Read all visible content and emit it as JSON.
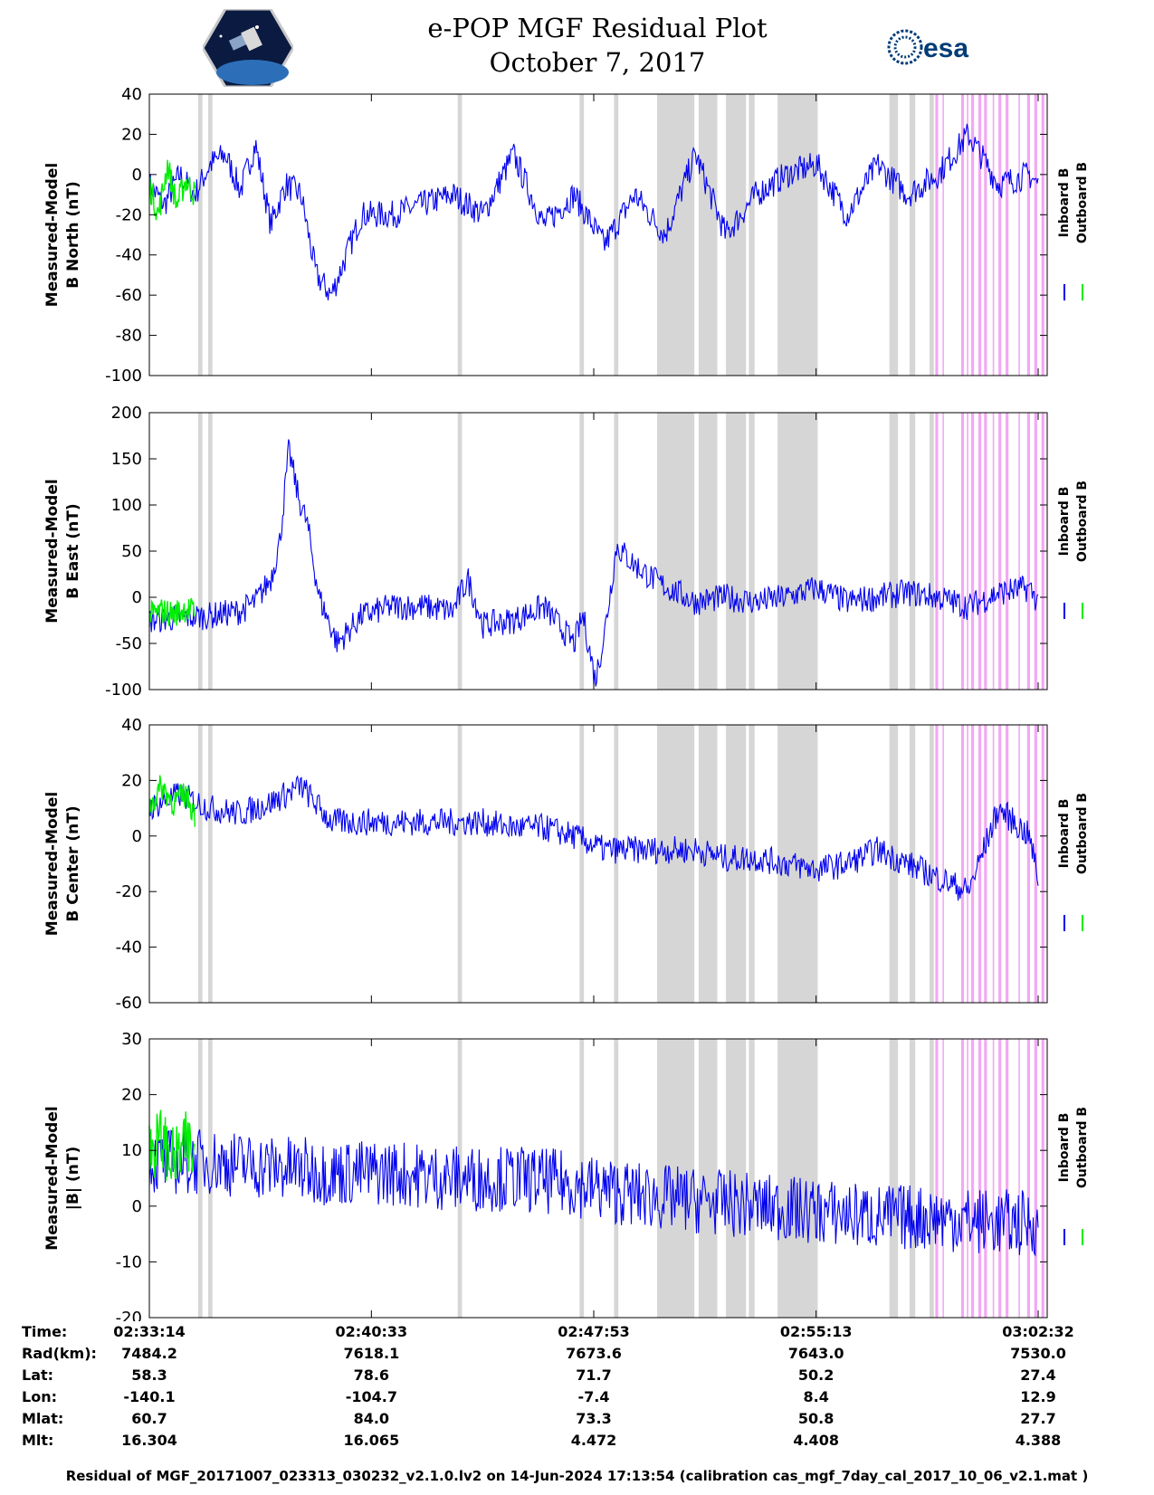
{
  "header": {
    "title_line1": "e-POP MGF Residual Plot",
    "title_line2": "October 7, 2017",
    "logo_left_icon": "cassiope-mission-logo",
    "logo_right_icon": "esa-logo",
    "logo_right_text": "esa"
  },
  "colors": {
    "inboard": "#0000ee",
    "outboard": "#00ee00",
    "gray_band": "#d6d6d6",
    "pink_band": "#f3a8f3"
  },
  "chart_data": [
    {
      "type": "line",
      "ylabel_line1": "Measured-Model",
      "ylabel_line2": "B North (nT)",
      "ylim": [
        -100,
        40
      ],
      "yticks": [
        "40",
        "20",
        "0",
        "-20",
        "-40",
        "-60",
        "-80",
        "-100"
      ],
      "legend": [
        "Inboard B",
        "Outboard B"
      ],
      "series": [
        {
          "name": "Inboard B",
          "x": [
            0,
            0.5,
            1,
            1.5,
            2,
            2.5,
            3,
            3.5,
            4,
            4.5,
            5,
            5.5,
            6,
            7,
            8,
            9,
            10,
            11,
            12,
            13,
            14,
            15,
            16,
            17,
            18,
            19,
            20,
            21,
            22,
            23,
            24,
            25,
            26,
            27,
            28,
            29,
            29.3
          ],
          "y": [
            -5,
            -15,
            0,
            -10,
            5,
            10,
            -8,
            15,
            -25,
            -5,
            -10,
            -50,
            -60,
            -20,
            -20,
            -15,
            -10,
            -20,
            10,
            -25,
            -10,
            -35,
            -10,
            -30,
            10,
            -30,
            -10,
            0,
            5,
            -20,
            5,
            -10,
            0,
            20,
            -5,
            0,
            -5
          ]
        },
        {
          "name": "Outboard B",
          "x": [
            0,
            0.3,
            0.6,
            0.9,
            1.2,
            1.5
          ],
          "y": [
            -5,
            -20,
            5,
            -15,
            -3,
            -10
          ]
        }
      ]
    },
    {
      "type": "line",
      "ylabel_line1": "Measured-Model",
      "ylabel_line2": "B East (nT)",
      "ylim": [
        -100,
        200
      ],
      "yticks": [
        "200",
        "150",
        "100",
        "50",
        "0",
        "-50",
        "-100"
      ],
      "legend": [
        "Inboard B",
        "Outboard B"
      ],
      "series": [
        {
          "name": "Inboard B",
          "x": [
            0,
            1,
            2,
            3,
            3.5,
            4,
            4.3,
            4.6,
            4.9,
            5.2,
            5.6,
            6.2,
            7,
            8,
            9,
            10,
            10.5,
            11,
            12,
            13,
            14,
            14.3,
            14.7,
            15,
            15.4,
            16,
            16.8,
            18,
            19,
            20,
            21,
            22,
            23,
            24,
            25,
            26,
            27,
            28,
            29,
            29.3
          ],
          "y": [
            -25,
            -22,
            -20,
            -15,
            -5,
            20,
            60,
            160,
            110,
            80,
            0,
            -50,
            -20,
            -10,
            -10,
            -15,
            20,
            -30,
            -25,
            -10,
            -50,
            -20,
            -90,
            -40,
            55,
            35,
            15,
            -5,
            0,
            -5,
            0,
            10,
            -5,
            0,
            5,
            0,
            -10,
            5,
            10,
            -5
          ]
        },
        {
          "name": "Outboard B",
          "x": [
            0,
            0.4,
            0.8,
            1.2,
            1.5
          ],
          "y": [
            -20,
            -15,
            -18,
            -12,
            -16
          ]
        }
      ]
    },
    {
      "type": "line",
      "ylabel_line1": "Measured-Model",
      "ylabel_line2": "B Center (nT)",
      "ylim": [
        -60,
        40
      ],
      "yticks": [
        "40",
        "20",
        "0",
        "-20",
        "-40",
        "-60"
      ],
      "legend": [
        "Inboard B",
        "Outboard B"
      ],
      "series": [
        {
          "name": "Inboard B",
          "x": [
            0,
            1,
            2,
            3,
            4,
            5,
            6,
            7,
            8,
            9,
            10,
            11,
            12,
            13,
            14,
            15,
            16,
            17,
            18,
            19,
            20,
            21,
            22,
            23,
            24,
            25,
            26,
            27,
            28,
            29,
            29.3
          ],
          "y": [
            10,
            15,
            10,
            8,
            12,
            18,
            5,
            5,
            5,
            5,
            5,
            5,
            3,
            3,
            0,
            -5,
            -5,
            -5,
            -5,
            -8,
            -8,
            -10,
            -12,
            -10,
            -5,
            -10,
            -15,
            -20,
            10,
            0,
            -15
          ]
        },
        {
          "name": "Outboard B",
          "x": [
            0,
            0.4,
            0.8,
            1.2,
            1.5
          ],
          "y": [
            10,
            18,
            12,
            15,
            8
          ]
        }
      ]
    },
    {
      "type": "line",
      "ylabel_line1": "Measured-Model",
      "ylabel_line2": "|B| (nT)",
      "ylim": [
        -20,
        30
      ],
      "yticks": [
        "30",
        "20",
        "10",
        "0",
        "-10",
        "-20"
      ],
      "legend": [
        "Inboard B",
        "Outboard B"
      ],
      "series": [
        {
          "name": "Inboard B",
          "x": [
            0,
            2,
            4,
            6,
            8,
            10,
            12,
            14,
            16,
            18,
            20,
            22,
            24,
            26,
            28,
            29.3
          ],
          "y": [
            8,
            8,
            7,
            6,
            6,
            5,
            5,
            4,
            2,
            1,
            0,
            -1,
            -2,
            -2,
            -3,
            -3
          ]
        },
        {
          "name": "Outboard B",
          "x": [
            0,
            0.4,
            0.8,
            1.2,
            1.5
          ],
          "y": [
            10,
            12,
            8,
            11,
            9
          ]
        }
      ]
    }
  ],
  "gray_bands": [
    [
      1.7,
      1.85
    ],
    [
      2.05,
      2.2
    ],
    [
      10.75,
      10.9
    ],
    [
      15.0,
      15.15
    ],
    [
      16.2,
      16.35
    ],
    [
      17.7,
      19.0
    ],
    [
      19.15,
      19.8
    ],
    [
      20.1,
      20.8
    ],
    [
      20.9,
      21.1
    ],
    [
      21.9,
      23.3
    ],
    [
      25.8,
      26.1
    ],
    [
      26.5,
      26.7
    ],
    [
      27.2,
      27.35
    ]
  ],
  "pink_bands": [
    [
      27.4,
      27.5
    ],
    [
      27.65,
      27.7
    ],
    [
      28.3,
      28.4
    ],
    [
      28.5,
      28.55
    ],
    [
      28.65,
      28.75
    ],
    [
      28.9,
      29.0
    ],
    [
      29.1,
      29.2
    ],
    [
      29.4,
      29.45
    ],
    [
      29.6,
      29.7
    ],
    [
      29.85,
      29.95
    ],
    [
      30.3,
      30.35
    ],
    [
      30.6,
      30.7
    ],
    [
      30.85,
      30.95
    ],
    [
      31.1,
      31.2
    ]
  ],
  "x_domain_minutes": [
    0,
    29.3
  ],
  "xticks_minutes": [
    0,
    7.32,
    14.65,
    21.98,
    29.3
  ],
  "ephemeris": {
    "rows": [
      {
        "label": "Time:",
        "values": [
          "02:33:14",
          "02:40:33",
          "02:47:53",
          "02:55:13",
          "03:02:32"
        ]
      },
      {
        "label": "Rad(km):",
        "values": [
          "7484.2",
          "7618.1",
          "7673.6",
          "7643.0",
          "7530.0"
        ]
      },
      {
        "label": "Lat:",
        "values": [
          "58.3",
          "78.6",
          "71.7",
          "50.2",
          "27.4"
        ]
      },
      {
        "label": "Lon:",
        "values": [
          "-140.1",
          "-104.7",
          "-7.4",
          "8.4",
          "12.9"
        ]
      },
      {
        "label": "Mlat:",
        "values": [
          "60.7",
          "84.0",
          "73.3",
          "50.8",
          "27.7"
        ]
      },
      {
        "label": "Mlt:",
        "values": [
          "16.304",
          "16.065",
          "4.472",
          "4.408",
          "4.388"
        ]
      }
    ]
  },
  "footer": {
    "note": "Residual of MGF_20171007_023313_030232_v2.1.0.lv2 on 14-Jun-2024 17:13:54 (calibration cas_mgf_7day_cal_2017_10_06_v2.1.mat )"
  }
}
